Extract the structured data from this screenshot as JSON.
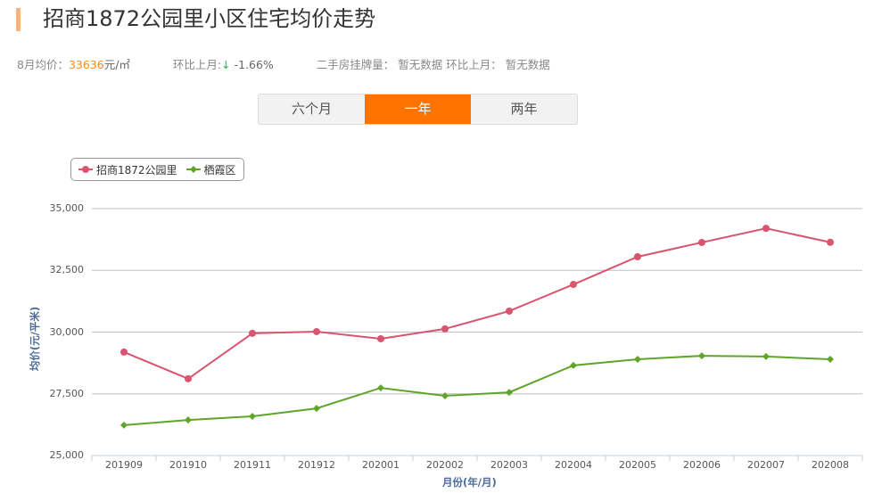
{
  "header": {
    "title": "招商1872公园里小区住宅均价走势",
    "accent_color": "#f8b47a"
  },
  "stats": {
    "avg_label": "8月均价：",
    "avg_value": "33636",
    "avg_unit": "元/㎡",
    "mom_label": "环比上月:",
    "mom_arrow": "↓",
    "mom_value": "-1.66%",
    "listing_label": "二手房挂牌量：",
    "listing_value": "暂无数据",
    "listing_mom_label": "环比上月：",
    "listing_mom_value": "暂无数据"
  },
  "tabs": [
    {
      "label": "六个月",
      "active": false
    },
    {
      "label": "一年",
      "active": true
    },
    {
      "label": "两年",
      "active": false
    }
  ],
  "chart_data": {
    "type": "line",
    "title": "",
    "xlabel": "月份(年/月)",
    "ylabel": "均价(元/平米)",
    "ylim": [
      25000,
      35000
    ],
    "yticks": [
      "35,000",
      "32,500",
      "30,000",
      "27,500",
      "25,000"
    ],
    "ytick_values": [
      35000,
      32500,
      30000,
      27500,
      25000
    ],
    "grid": true,
    "legend_position": "top-left",
    "categories": [
      "201909",
      "201910",
      "201911",
      "201912",
      "202001",
      "202002",
      "202003",
      "202004",
      "202005",
      "202006",
      "202007",
      "202008"
    ],
    "series": [
      {
        "name": "招商1872公园里",
        "color": "#d9546e",
        "marker": "circle",
        "values": [
          29190,
          28110,
          29950,
          30020,
          29730,
          30130,
          30850,
          31930,
          33050,
          33630,
          34200,
          33636
        ]
      },
      {
        "name": "栖霞区",
        "color": "#5fa52a",
        "marker": "diamond",
        "values": [
          26230,
          26440,
          26590,
          26910,
          27740,
          27420,
          27560,
          28650,
          28900,
          29040,
          29010,
          28900
        ]
      }
    ]
  }
}
